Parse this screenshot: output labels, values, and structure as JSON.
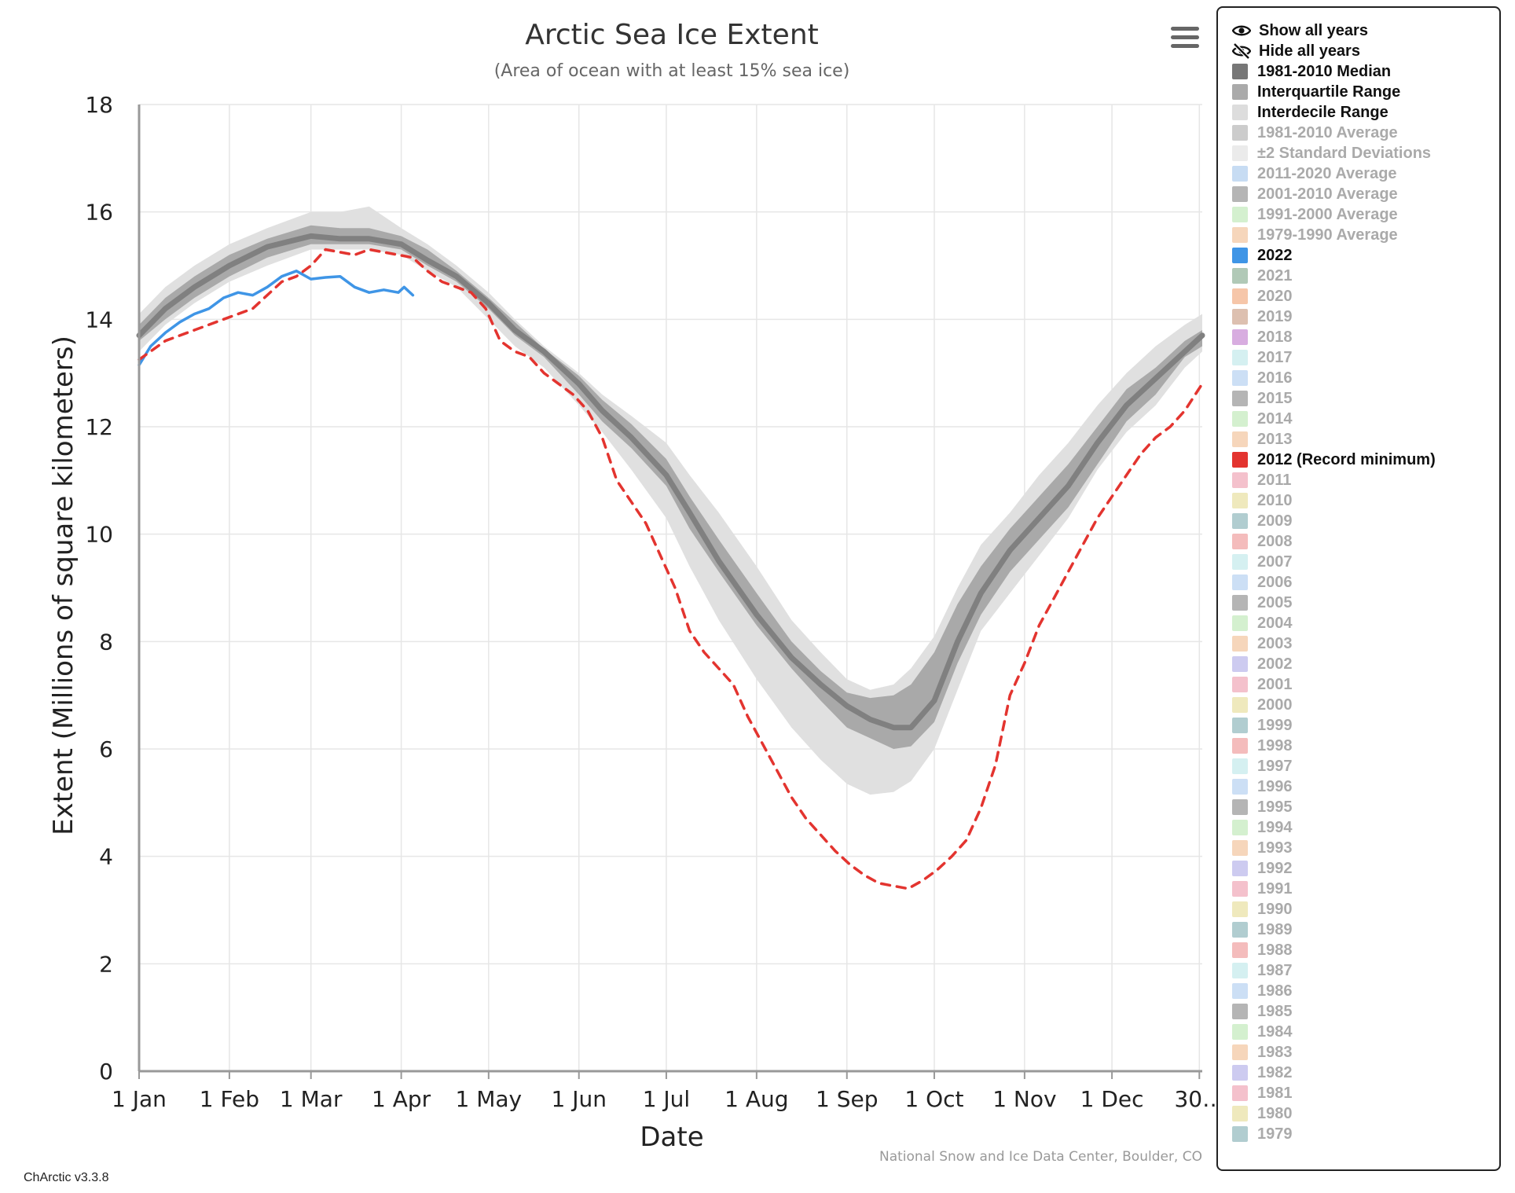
{
  "chart_data": {
    "type": "line",
    "title": "Arctic Sea Ice Extent",
    "subtitle": "(Area of ocean with at least 15% sea ice)",
    "xlabel": "Date",
    "ylabel": "Extent (Millions of square kilometers)",
    "ylim": [
      0,
      18
    ],
    "xlim": [
      1,
      366
    ],
    "y_ticks": [
      "0",
      "2",
      "4",
      "6",
      "8",
      "10",
      "12",
      "14",
      "16",
      "18"
    ],
    "x_ticks": [
      {
        "day": 1,
        "label": "1 Jan"
      },
      {
        "day": 32,
        "label": "1 Feb"
      },
      {
        "day": 60,
        "label": "1 Mar"
      },
      {
        "day": 91,
        "label": "1 Apr"
      },
      {
        "day": 121,
        "label": "1 May"
      },
      {
        "day": 152,
        "label": "1 Jun"
      },
      {
        "day": 182,
        "label": "1 Jul"
      },
      {
        "day": 213,
        "label": "1 Aug"
      },
      {
        "day": 244,
        "label": "1 Sep"
      },
      {
        "day": 274,
        "label": "1 Oct"
      },
      {
        "day": 305,
        "label": "1 Nov"
      },
      {
        "day": 335,
        "label": "1 Dec"
      },
      {
        "day": 365,
        "label": "30…"
      }
    ],
    "grid": true,
    "series": [
      {
        "name": "Interdecile Range",
        "kind": "band",
        "color": "#e0e0e0",
        "x": [
          1,
          10,
          20,
          32,
          45,
          60,
          70,
          80,
          91,
          100,
          110,
          121,
          130,
          140,
          152,
          160,
          170,
          182,
          190,
          200,
          213,
          225,
          235,
          244,
          252,
          260,
          266,
          274,
          282,
          290,
          300,
          310,
          320,
          330,
          340,
          350,
          360,
          366
        ],
        "low": [
          13.4,
          13.9,
          14.3,
          14.7,
          15.0,
          15.3,
          15.3,
          15.3,
          15.2,
          14.9,
          14.6,
          14.0,
          13.5,
          13.1,
          12.4,
          11.9,
          11.2,
          10.3,
          9.4,
          8.4,
          7.3,
          6.4,
          5.8,
          5.35,
          5.15,
          5.2,
          5.4,
          6.0,
          7.1,
          8.2,
          8.9,
          9.6,
          10.3,
          11.2,
          11.9,
          12.4,
          13.1,
          13.4
        ],
        "high": [
          14.1,
          14.6,
          15.0,
          15.4,
          15.7,
          16.0,
          16.0,
          16.1,
          15.7,
          15.4,
          15.0,
          14.5,
          14.0,
          13.5,
          13.0,
          12.6,
          12.2,
          11.7,
          11.1,
          10.4,
          9.4,
          8.4,
          7.8,
          7.3,
          7.1,
          7.2,
          7.5,
          8.1,
          9.0,
          9.8,
          10.4,
          11.1,
          11.7,
          12.4,
          13.0,
          13.5,
          13.9,
          14.1
        ]
      },
      {
        "name": "Interquartile Range",
        "kind": "band",
        "color": "#a9a9a9",
        "x": [
          1,
          10,
          20,
          32,
          45,
          60,
          70,
          80,
          91,
          100,
          110,
          121,
          130,
          140,
          152,
          160,
          170,
          182,
          190,
          200,
          213,
          225,
          235,
          244,
          252,
          260,
          266,
          274,
          282,
          290,
          300,
          310,
          320,
          330,
          340,
          350,
          360,
          366
        ],
        "low": [
          13.6,
          14.0,
          14.4,
          14.8,
          15.15,
          15.4,
          15.4,
          15.4,
          15.3,
          15.0,
          14.7,
          14.2,
          13.7,
          13.3,
          12.6,
          12.1,
          11.6,
          10.9,
          10.1,
          9.3,
          8.3,
          7.5,
          6.9,
          6.4,
          6.2,
          6.0,
          6.05,
          6.5,
          7.6,
          8.5,
          9.3,
          9.9,
          10.5,
          11.3,
          12.1,
          12.6,
          13.3,
          13.5
        ],
        "high": [
          13.9,
          14.4,
          14.8,
          15.2,
          15.5,
          15.75,
          15.7,
          15.7,
          15.55,
          15.3,
          14.9,
          14.4,
          13.95,
          13.45,
          12.95,
          12.5,
          12.05,
          11.4,
          10.7,
          9.9,
          8.9,
          8.0,
          7.45,
          7.05,
          6.95,
          7.0,
          7.2,
          7.8,
          8.7,
          9.4,
          10.1,
          10.7,
          11.3,
          12.0,
          12.7,
          13.1,
          13.6,
          13.8
        ]
      },
      {
        "name": "1981-2010 Median",
        "kind": "line",
        "color": "#808080",
        "x": [
          1,
          10,
          20,
          32,
          45,
          60,
          70,
          80,
          91,
          100,
          110,
          121,
          130,
          140,
          152,
          160,
          170,
          182,
          190,
          200,
          213,
          225,
          235,
          244,
          252,
          260,
          266,
          274,
          282,
          290,
          300,
          310,
          320,
          330,
          340,
          350,
          360,
          366
        ],
        "values": [
          13.7,
          14.2,
          14.6,
          15.0,
          15.35,
          15.55,
          15.5,
          15.5,
          15.4,
          15.1,
          14.8,
          14.3,
          13.8,
          13.4,
          12.8,
          12.3,
          11.8,
          11.1,
          10.4,
          9.5,
          8.5,
          7.7,
          7.2,
          6.8,
          6.55,
          6.4,
          6.4,
          6.9,
          8.0,
          8.9,
          9.7,
          10.3,
          10.9,
          11.7,
          12.4,
          12.9,
          13.4,
          13.7
        ]
      },
      {
        "name": "2022",
        "kind": "line",
        "color": "#3f95e6",
        "x": [
          1,
          5,
          10,
          15,
          20,
          25,
          30,
          35,
          40,
          45,
          50,
          55,
          60,
          65,
          70,
          75,
          80,
          85,
          90,
          92,
          95
        ],
        "values": [
          13.15,
          13.5,
          13.75,
          13.95,
          14.1,
          14.2,
          14.4,
          14.5,
          14.45,
          14.6,
          14.8,
          14.9,
          14.75,
          14.78,
          14.8,
          14.6,
          14.5,
          14.55,
          14.5,
          14.6,
          14.45
        ]
      },
      {
        "name": "2012 (Record minimum)",
        "kind": "line",
        "color": "#e3342f",
        "dashed": true,
        "x": [
          1,
          10,
          20,
          30,
          40,
          50,
          55,
          60,
          65,
          70,
          75,
          80,
          85,
          90,
          95,
          100,
          105,
          110,
          115,
          120,
          125,
          130,
          135,
          140,
          145,
          150,
          155,
          160,
          165,
          170,
          175,
          180,
          185,
          190,
          195,
          200,
          205,
          210,
          215,
          220,
          225,
          230,
          235,
          240,
          245,
          250,
          255,
          260,
          265,
          270,
          275,
          280,
          285,
          290,
          295,
          300,
          305,
          310,
          315,
          320,
          325,
          330,
          335,
          340,
          345,
          350,
          355,
          360,
          366
        ],
        "values": [
          13.25,
          13.6,
          13.8,
          14.0,
          14.2,
          14.7,
          14.8,
          15.0,
          15.3,
          15.25,
          15.2,
          15.3,
          15.25,
          15.2,
          15.15,
          14.9,
          14.7,
          14.6,
          14.5,
          14.2,
          13.6,
          13.4,
          13.3,
          13.0,
          12.8,
          12.6,
          12.3,
          11.8,
          11.0,
          10.6,
          10.2,
          9.6,
          9.0,
          8.2,
          7.8,
          7.5,
          7.2,
          6.6,
          6.1,
          5.6,
          5.1,
          4.7,
          4.4,
          4.1,
          3.85,
          3.65,
          3.5,
          3.45,
          3.4,
          3.55,
          3.75,
          4.0,
          4.3,
          4.9,
          5.7,
          7.0,
          7.6,
          8.3,
          8.8,
          9.3,
          9.8,
          10.3,
          10.7,
          11.1,
          11.5,
          11.8,
          12.0,
          12.3,
          12.8
        ]
      }
    ]
  },
  "credits": "National Snow and Ice Data Center, Boulder, CO",
  "version": "ChArctic v3.3.8",
  "legend": {
    "show_all": "Show all years",
    "hide_all": "Hide all years",
    "items": [
      {
        "label": "1981-2010 Median",
        "color": "#777777",
        "active": true
      },
      {
        "label": "Interquartile Range",
        "color": "#aaaaaa",
        "active": true
      },
      {
        "label": "Interdecile Range",
        "color": "#dddddd",
        "active": true
      },
      {
        "label": "1981-2010 Average",
        "color": "#cccccc",
        "active": false
      },
      {
        "label": "±2 Standard Deviations",
        "color": "#ebebeb",
        "active": false
      },
      {
        "label": "2011-2020 Average",
        "color": "#c7dcf3",
        "active": false
      },
      {
        "label": "2001-2010 Average",
        "color": "#b5b5b5",
        "active": false
      },
      {
        "label": "1991-2000 Average",
        "color": "#d4f0cf",
        "active": false
      },
      {
        "label": "1979-1990 Average",
        "color": "#f6d6bb",
        "active": false
      },
      {
        "label": "2022",
        "color": "#3f95e6",
        "active": true
      },
      {
        "label": "2021",
        "color": "#b1c9b7",
        "active": false
      },
      {
        "label": "2020",
        "color": "#f6c6a9",
        "active": false
      },
      {
        "label": "2019",
        "color": "#ddc0b0",
        "active": false
      },
      {
        "label": "2018",
        "color": "#d8ade0",
        "active": false
      },
      {
        "label": "2017",
        "color": "#d5f0f1",
        "active": false
      },
      {
        "label": "2016",
        "color": "#ccdff5",
        "active": false
      },
      {
        "label": "2015",
        "color": "#b5b5b5",
        "active": false
      },
      {
        "label": "2014",
        "color": "#d4f0cf",
        "active": false
      },
      {
        "label": "2013",
        "color": "#f6d6bb",
        "active": false
      },
      {
        "label": "2012 (Record minimum)",
        "color": "#e3342f",
        "active": true
      },
      {
        "label": "2011",
        "color": "#f4c1cc",
        "active": false
      },
      {
        "label": "2010",
        "color": "#efe9bd",
        "active": false
      },
      {
        "label": "2009",
        "color": "#b1cdd0",
        "active": false
      },
      {
        "label": "2008",
        "color": "#f4bcbc",
        "active": false
      },
      {
        "label": "2007",
        "color": "#d5f0f1",
        "active": false
      },
      {
        "label": "2006",
        "color": "#ccdff5",
        "active": false
      },
      {
        "label": "2005",
        "color": "#b5b5b5",
        "active": false
      },
      {
        "label": "2004",
        "color": "#d4f0cf",
        "active": false
      },
      {
        "label": "2003",
        "color": "#f6d6bb",
        "active": false
      },
      {
        "label": "2002",
        "color": "#cdcbf0",
        "active": false
      },
      {
        "label": "2001",
        "color": "#f4c1cc",
        "active": false
      },
      {
        "label": "2000",
        "color": "#efe9bd",
        "active": false
      },
      {
        "label": "1999",
        "color": "#b1cdd0",
        "active": false
      },
      {
        "label": "1998",
        "color": "#f4bcbc",
        "active": false
      },
      {
        "label": "1997",
        "color": "#d5f0f1",
        "active": false
      },
      {
        "label": "1996",
        "color": "#ccdff5",
        "active": false
      },
      {
        "label": "1995",
        "color": "#b5b5b5",
        "active": false
      },
      {
        "label": "1994",
        "color": "#d4f0cf",
        "active": false
      },
      {
        "label": "1993",
        "color": "#f6d6bb",
        "active": false
      },
      {
        "label": "1992",
        "color": "#cdcbf0",
        "active": false
      },
      {
        "label": "1991",
        "color": "#f4c1cc",
        "active": false
      },
      {
        "label": "1990",
        "color": "#efe9bd",
        "active": false
      },
      {
        "label": "1989",
        "color": "#b1cdd0",
        "active": false
      },
      {
        "label": "1988",
        "color": "#f4bcbc",
        "active": false
      },
      {
        "label": "1987",
        "color": "#d5f0f1",
        "active": false
      },
      {
        "label": "1986",
        "color": "#ccdff5",
        "active": false
      },
      {
        "label": "1985",
        "color": "#b5b5b5",
        "active": false
      },
      {
        "label": "1984",
        "color": "#d4f0cf",
        "active": false
      },
      {
        "label": "1983",
        "color": "#f6d6bb",
        "active": false
      },
      {
        "label": "1982",
        "color": "#cdcbf0",
        "active": false
      },
      {
        "label": "1981",
        "color": "#f4c1cc",
        "active": false
      },
      {
        "label": "1980",
        "color": "#efe9bd",
        "active": false
      },
      {
        "label": "1979",
        "color": "#b1cdd0",
        "active": false
      }
    ]
  }
}
